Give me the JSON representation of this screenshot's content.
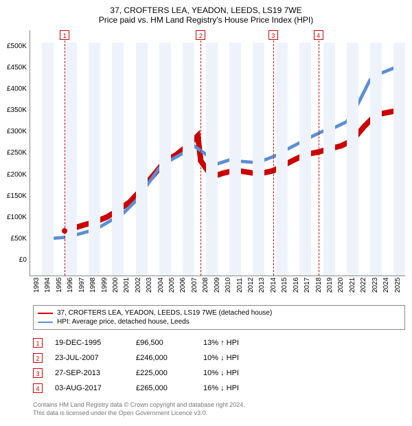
{
  "title": "37, CROFTERS LEA, YEADON, LEEDS, LS19 7WE",
  "subtitle": "Price paid vs. HM Land Registry's House Price Index (HPI)",
  "chart": {
    "type": "line",
    "background_color": "#ffffff",
    "band_color": "#eef3fb",
    "grid_color": "#888888",
    "title_fontsize": 12,
    "label_fontsize": 10,
    "x": {
      "min": 1993,
      "max": 2025,
      "ticks": [
        1993,
        1994,
        1995,
        1996,
        1997,
        1998,
        1999,
        2000,
        2001,
        2002,
        2003,
        2004,
        2005,
        2006,
        2007,
        2008,
        2009,
        2010,
        2011,
        2012,
        2013,
        2014,
        2015,
        2016,
        2017,
        2018,
        2019,
        2020,
        2021,
        2022,
        2023,
        2024,
        2025
      ]
    },
    "y": {
      "min": 0,
      "max": 500000,
      "tick_step": 50000,
      "labels": [
        "£500K",
        "£450K",
        "£400K",
        "£350K",
        "£300K",
        "£250K",
        "£200K",
        "£150K",
        "£100K",
        "£50K",
        "£0"
      ]
    },
    "series": [
      {
        "name": "37, CROFTERS LEA, YEADON, LEEDS, LS19 7WE (detached house)",
        "color": "#cc0000",
        "line_width": 2,
        "data": [
          [
            1995.96,
            96500
          ],
          [
            1996.5,
            100000
          ],
          [
            1997.5,
            108000
          ],
          [
            1998.5,
            115000
          ],
          [
            1999.5,
            125000
          ],
          [
            2000.5,
            140000
          ],
          [
            2001.5,
            158000
          ],
          [
            2002.5,
            185000
          ],
          [
            2003.5,
            215000
          ],
          [
            2004.5,
            245000
          ],
          [
            2005.5,
            260000
          ],
          [
            2006.5,
            280000
          ],
          [
            2007.3,
            300000
          ],
          [
            2007.56,
            246000
          ],
          [
            2008.5,
            212000
          ],
          [
            2009.5,
            220000
          ],
          [
            2010.5,
            226000
          ],
          [
            2011.5,
            222000
          ],
          [
            2012.5,
            218000
          ],
          [
            2013.74,
            225000
          ],
          [
            2014.5,
            235000
          ],
          [
            2015.5,
            248000
          ],
          [
            2016.5,
            260000
          ],
          [
            2017.59,
            265000
          ],
          [
            2018.5,
            272000
          ],
          [
            2019.5,
            278000
          ],
          [
            2020.5,
            290000
          ],
          [
            2021.5,
            320000
          ],
          [
            2022.5,
            345000
          ],
          [
            2023.5,
            350000
          ],
          [
            2024.5,
            355000
          ],
          [
            2025.0,
            360000
          ]
        ]
      },
      {
        "name": "HPI: Average price, detached house, Leeds",
        "color": "#5b8fd6",
        "line_width": 1.2,
        "data": [
          [
            1995.0,
            80000
          ],
          [
            1996.0,
            82000
          ],
          [
            1997.0,
            88000
          ],
          [
            1998.0,
            95000
          ],
          [
            1999.0,
            105000
          ],
          [
            2000.0,
            120000
          ],
          [
            2001.0,
            135000
          ],
          [
            2002.0,
            160000
          ],
          [
            2003.0,
            195000
          ],
          [
            2004.0,
            230000
          ],
          [
            2005.0,
            248000
          ],
          [
            2006.0,
            262000
          ],
          [
            2007.0,
            278000
          ],
          [
            2008.0,
            260000
          ],
          [
            2009.0,
            240000
          ],
          [
            2010.0,
            248000
          ],
          [
            2011.0,
            245000
          ],
          [
            2012.0,
            243000
          ],
          [
            2013.0,
            248000
          ],
          [
            2014.0,
            258000
          ],
          [
            2015.0,
            272000
          ],
          [
            2016.0,
            285000
          ],
          [
            2017.0,
            298000
          ],
          [
            2018.0,
            310000
          ],
          [
            2019.0,
            318000
          ],
          [
            2020.0,
            330000
          ],
          [
            2021.0,
            370000
          ],
          [
            2022.0,
            420000
          ],
          [
            2023.0,
            435000
          ],
          [
            2024.0,
            445000
          ],
          [
            2025.0,
            432000
          ]
        ]
      }
    ],
    "markers": [
      {
        "n": "1",
        "year": 1995.96,
        "value": 96500
      },
      {
        "n": "2",
        "year": 2007.56,
        "value": 246000
      },
      {
        "n": "3",
        "year": 2013.74,
        "value": 225000
      },
      {
        "n": "4",
        "year": 2017.59,
        "value": 265000
      }
    ]
  },
  "legend": {
    "items": [
      {
        "color": "#cc0000",
        "label": "37, CROFTERS LEA, YEADON, LEEDS, LS19 7WE (detached house)"
      },
      {
        "color": "#5b8fd6",
        "label": "HPI: Average price, detached house, Leeds"
      }
    ]
  },
  "transactions": [
    {
      "n": "1",
      "date": "19-DEC-1995",
      "price": "£96,500",
      "diff": "13% ↑ HPI"
    },
    {
      "n": "2",
      "date": "23-JUL-2007",
      "price": "£246,000",
      "diff": "10% ↓ HPI"
    },
    {
      "n": "3",
      "date": "27-SEP-2013",
      "price": "£225,000",
      "diff": "10% ↓ HPI"
    },
    {
      "n": "4",
      "date": "03-AUG-2017",
      "price": "£265,000",
      "diff": "16% ↓ HPI"
    }
  ],
  "footer": {
    "line1": "Contains HM Land Registry data © Crown copyright and database right 2024.",
    "line2": "This data is licensed under the Open Government Licence v3.0."
  }
}
